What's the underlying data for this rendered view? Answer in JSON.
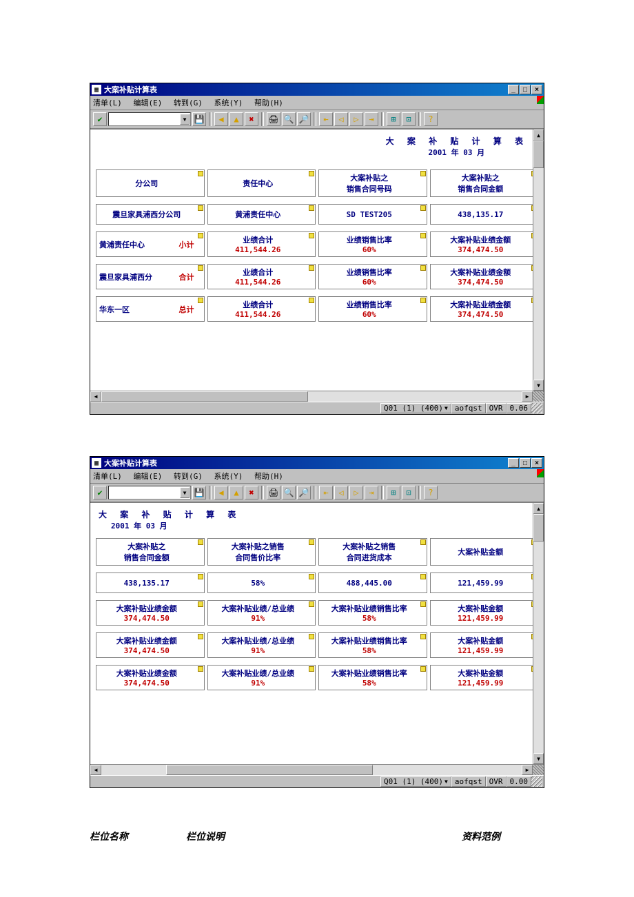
{
  "window": {
    "title": "大案补贴计算表",
    "menu": {
      "m0": "清单(L)",
      "m1": "编辑(E)",
      "m2": "转到(G)",
      "m3": "系统(Y)",
      "m4": "帮助(H)"
    },
    "winbtns": {
      "min": "_",
      "max": "□",
      "close": "×"
    },
    "status": {
      "s1": "Q01 (1) (400)",
      "s2": "aofqst",
      "s3": "OVR",
      "time1": "0.06",
      "time2": "0.00"
    }
  },
  "report": {
    "title": "大 案 补 贴 计 算 表",
    "date": "2001  年  03  月"
  },
  "screen1": {
    "headers": {
      "c0_l1": "分公司",
      "c1_l1": "责任中心",
      "c2_l1": "大案补贴之",
      "c2_l2": "销售合同号码",
      "c3_l1": "大案补贴之",
      "c3_l2": "销售合同金额"
    },
    "r1": {
      "c0": "震旦家具浦西分公司",
      "c1": "黄浦责任中心",
      "c2": "SD TEST205",
      "c3": "438,135.17"
    },
    "r2": {
      "c0a": "黄浦责任中心",
      "c0b": "小计",
      "c1_l1": "业绩合计",
      "c1_l2": "411,544.26",
      "c2_l1": "业绩销售比率",
      "c2_l2": "60%",
      "c3_l1": "大案补贴业绩金额",
      "c3_l2": "374,474.50"
    },
    "r3": {
      "c0a": "震旦家具浦西分",
      "c0b": "合计",
      "c1_l1": "业绩合计",
      "c1_l2": "411,544.26",
      "c2_l1": "业绩销售比率",
      "c2_l2": "60%",
      "c3_l1": "大案补贴业绩金额",
      "c3_l2": "374,474.50"
    },
    "r4": {
      "c0a": "华东一区",
      "c0b": "总计",
      "c1_l1": "业绩合计",
      "c1_l2": "411,544.26",
      "c2_l1": "业绩销售比率",
      "c2_l2": "60%",
      "c3_l1": "大案补贴业绩金额",
      "c3_l2": "374,474.50"
    }
  },
  "screen2": {
    "headers": {
      "c0_l1": "大案补贴之",
      "c0_l2": "销售合同金额",
      "c1_l1": "大案补贴之销售",
      "c1_l2": "合同售价比率",
      "c2_l1": "大案补贴之销售",
      "c2_l2": "合同进货成本",
      "c3_l1": "大案补贴金额"
    },
    "r1": {
      "c0": "438,135.17",
      "c1": "58%",
      "c2": "488,445.00",
      "c3": "121,459.99"
    },
    "r2": {
      "c0_l1": "大案补贴业绩金额",
      "c0_l2": "374,474.50",
      "c1_l1": "大案补贴业绩/总业绩",
      "c1_l2": "91%",
      "c2_l1": "大案补贴业绩销售比率",
      "c2_l2": "58%",
      "c3_l1": "大案补贴金额",
      "c3_l2": "121,459.99"
    },
    "r3": {
      "c0_l1": "大案补贴业绩金额",
      "c0_l2": "374,474.50",
      "c1_l1": "大案补贴业绩/总业绩",
      "c1_l2": "91%",
      "c2_l1": "大案补贴业绩销售比率",
      "c2_l2": "58%",
      "c3_l1": "大案补贴金额",
      "c3_l2": "121,459.99"
    },
    "r4": {
      "c0_l1": "大案补贴业绩金额",
      "c0_l2": "374,474.50",
      "c1_l1": "大案补贴业绩/总业绩",
      "c1_l2": "91%",
      "c2_l1": "大案补贴业绩销售比率",
      "c2_l2": "58%",
      "c3_l1": "大案补贴金额",
      "c3_l2": "121,459.99"
    }
  },
  "footer": {
    "a": "栏位名称",
    "b": "栏位说明",
    "c": "资料范例"
  }
}
